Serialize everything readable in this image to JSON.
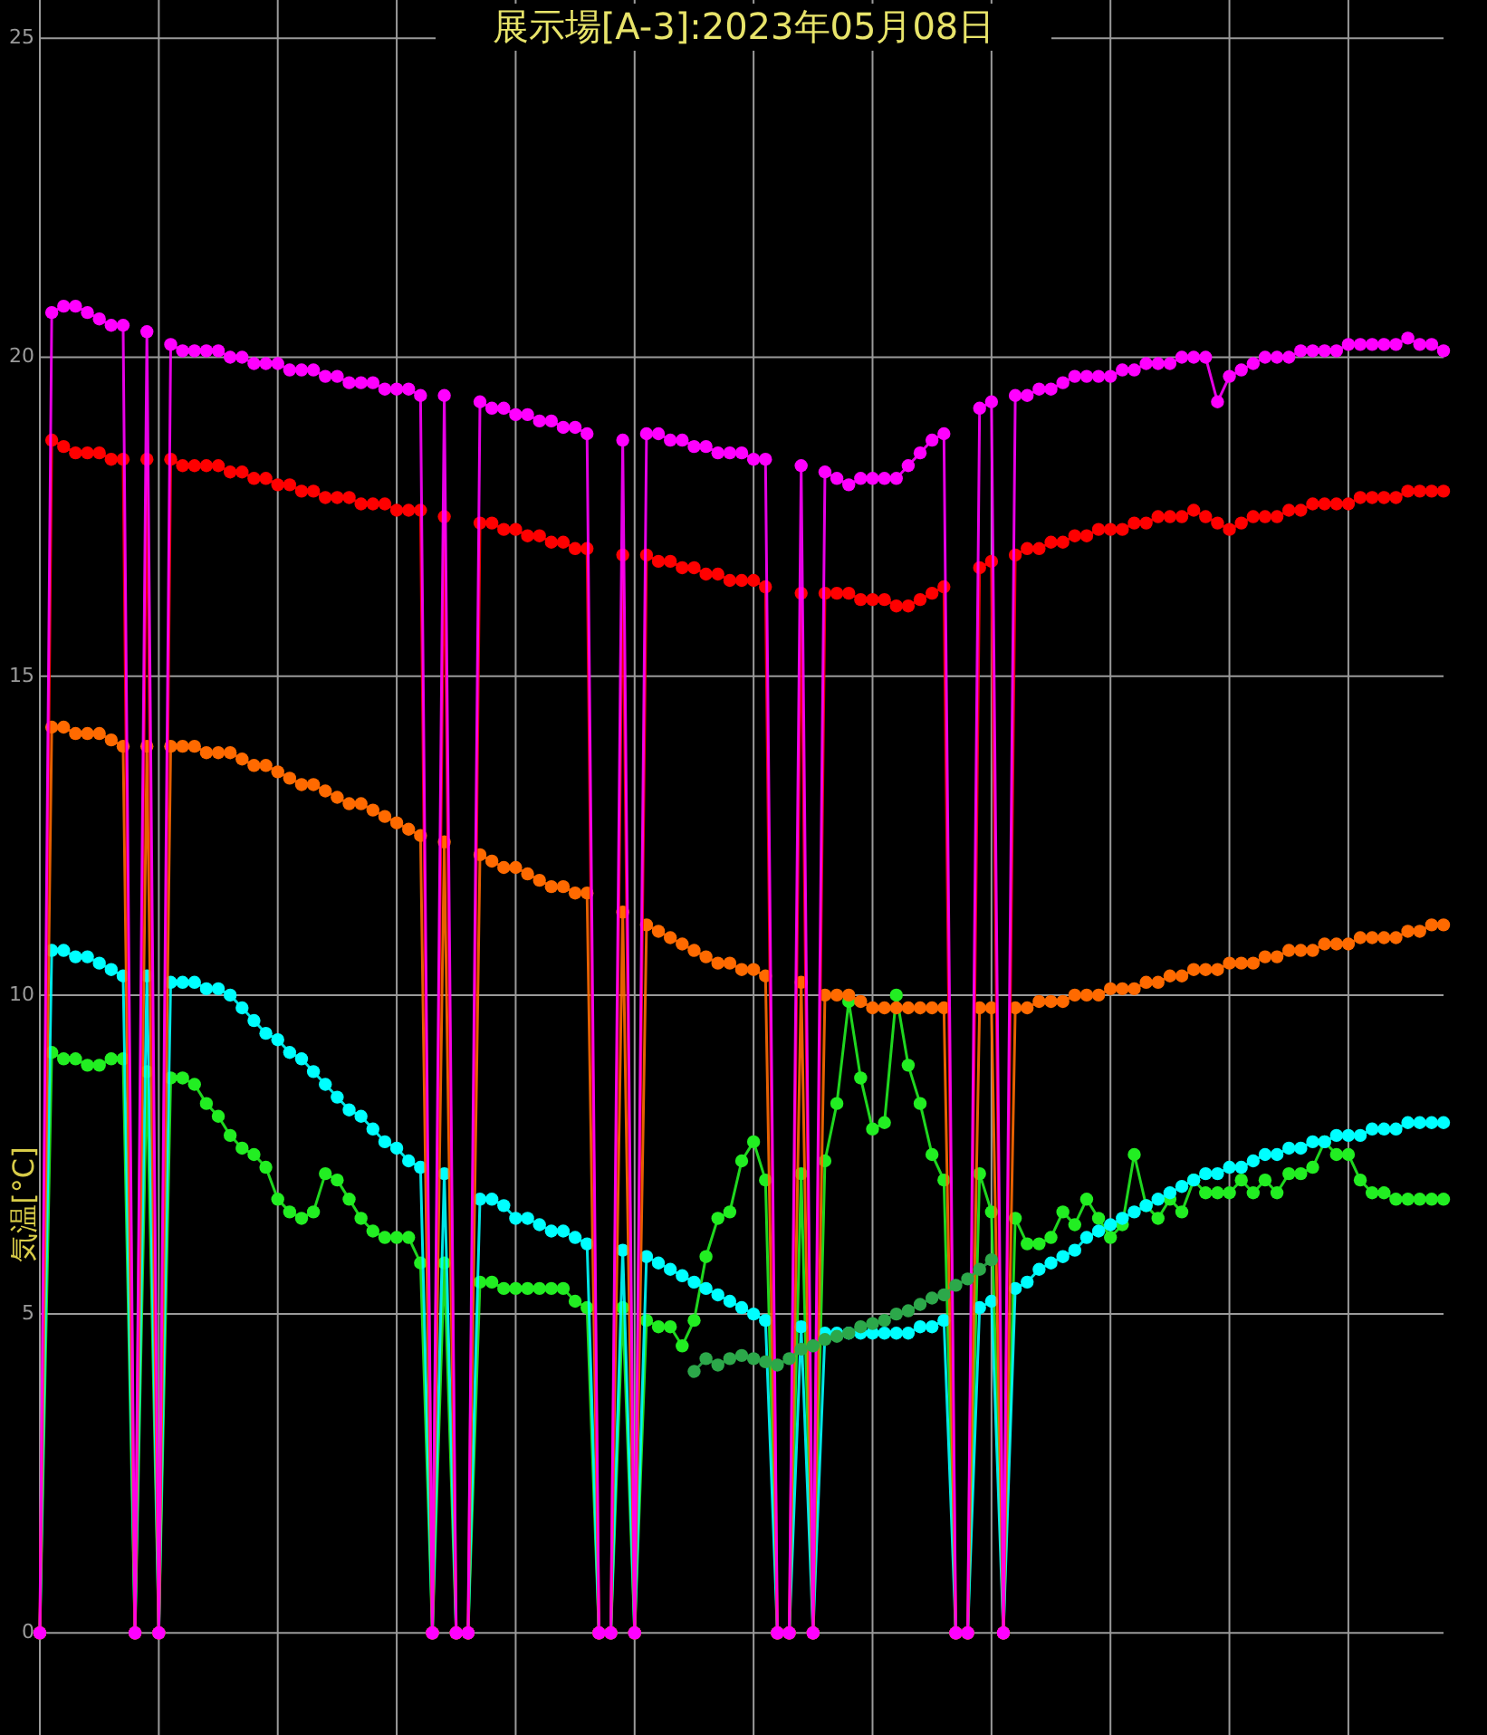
{
  "chart_data": {
    "type": "line",
    "title": "展示場[A-3]:2023年05月08日",
    "ylabel": "気温[°C]",
    "categories": [
      null,
      null,
      null,
      null,
      null,
      null,
      null,
      null,
      null,
      null,
      null,
      null,
      null,
      null,
      null,
      null,
      null,
      null,
      null,
      null,
      null,
      null,
      null,
      null,
      null,
      null,
      null,
      null,
      null,
      null,
      null,
      null,
      null,
      null,
      null,
      null,
      null,
      null,
      null,
      null,
      null,
      null,
      null,
      null,
      null,
      null,
      null,
      null,
      null,
      null,
      null,
      null,
      null,
      null,
      null,
      null,
      null,
      null,
      null,
      null,
      null,
      null,
      null,
      null,
      null,
      null,
      null,
      null,
      null,
      null,
      null,
      null,
      null,
      null,
      null,
      null,
      null,
      null,
      null,
      null,
      null,
      null,
      null,
      null,
      null,
      null,
      null,
      null,
      null,
      null,
      null,
      null,
      null,
      null,
      null,
      null,
      null,
      null,
      null,
      null,
      null,
      null,
      null,
      null,
      null,
      null,
      null,
      null,
      null,
      null,
      null,
      null,
      null,
      null,
      null,
      null,
      null,
      null,
      null
    ],
    "series": [
      {
        "color": "#2ca84a",
        "values": [
          null,
          null,
          null,
          null,
          null,
          null,
          null,
          null,
          null,
          null,
          null,
          null,
          null,
          null,
          null,
          null,
          null,
          null,
          null,
          null,
          null,
          null,
          null,
          null,
          null,
          null,
          null,
          null,
          null,
          null,
          null,
          null,
          null,
          null,
          null,
          null,
          null,
          null,
          null,
          null,
          null,
          null,
          null,
          null,
          null,
          null,
          null,
          null,
          null,
          null,
          null,
          null,
          null,
          null,
          null,
          4.1,
          4.3,
          4.2,
          4.3,
          4.35,
          4.3,
          4.25,
          4.2,
          4.3,
          4.45,
          4.5,
          4.6,
          4.65,
          4.7,
          4.8,
          4.85,
          4.9,
          5.0,
          5.05,
          5.15,
          5.25,
          5.3,
          5.45,
          5.55,
          5.7,
          5.85,
          null,
          null,
          null,
          null,
          null,
          null,
          null,
          null,
          null,
          null,
          null,
          null,
          null,
          null,
          null,
          null,
          null,
          null,
          null,
          null,
          null,
          null,
          null,
          null,
          null,
          null,
          null,
          null,
          null,
          null,
          null,
          null,
          null,
          null,
          null,
          null,
          null,
          null
        ]
      },
      {
        "color": "#ff00ff",
        "values": [
          0,
          20.7,
          20.8,
          20.8,
          20.7,
          20.6,
          20.5,
          20.5,
          0,
          20.4,
          0,
          20.2,
          20.1,
          20.1,
          20.1,
          20.1,
          20.0,
          20.0,
          19.9,
          19.9,
          19.9,
          19.8,
          19.8,
          19.8,
          19.7,
          19.7,
          19.6,
          19.6,
          19.6,
          19.5,
          19.5,
          19.5,
          19.4,
          0,
          19.4,
          0,
          0,
          19.3,
          19.2,
          19.2,
          19.1,
          19.1,
          19.0,
          19.0,
          18.9,
          18.9,
          18.8,
          0,
          0,
          18.7,
          0,
          18.8,
          18.8,
          18.7,
          18.7,
          18.6,
          18.6,
          18.5,
          18.5,
          18.5,
          18.4,
          18.4,
          0,
          0,
          18.3,
          0,
          18.2,
          18.1,
          18.0,
          18.1,
          18.1,
          18.1,
          18.1,
          18.3,
          18.5,
          18.7,
          18.8,
          0,
          0,
          19.2,
          19.3,
          0,
          19.4,
          19.4,
          19.5,
          19.5,
          19.6,
          19.7,
          19.7,
          19.7,
          19.7,
          19.8,
          19.8,
          19.9,
          19.9,
          19.9,
          20.0,
          20.0,
          20.0,
          19.3,
          19.7,
          19.8,
          19.9,
          20.0,
          20.0,
          20.0,
          20.1,
          20.1,
          20.1,
          20.1,
          20.2,
          20.2,
          20.2,
          20.2,
          20.2,
          20.3,
          20.2,
          20.2,
          20.1
        ]
      },
      {
        "color": "#ff0000",
        "values": [
          0,
          18.7,
          18.6,
          18.5,
          18.5,
          18.5,
          18.4,
          18.4,
          0,
          18.4,
          0,
          18.4,
          18.3,
          18.3,
          18.3,
          18.3,
          18.2,
          18.2,
          18.1,
          18.1,
          18.0,
          18.0,
          17.9,
          17.9,
          17.8,
          17.8,
          17.8,
          17.7,
          17.7,
          17.7,
          17.6,
          17.6,
          17.6,
          0,
          17.5,
          0,
          0,
          17.4,
          17.4,
          17.3,
          17.3,
          17.2,
          17.2,
          17.1,
          17.1,
          17.0,
          17.0,
          0,
          0,
          16.9,
          0,
          16.9,
          16.8,
          16.8,
          16.7,
          16.7,
          16.6,
          16.6,
          16.5,
          16.5,
          16.5,
          16.4,
          0,
          0,
          16.3,
          0,
          16.3,
          16.3,
          16.3,
          16.2,
          16.2,
          16.2,
          16.1,
          16.1,
          16.2,
          16.3,
          16.4,
          0,
          0,
          16.7,
          16.8,
          0,
          16.9,
          17.0,
          17.0,
          17.1,
          17.1,
          17.2,
          17.2,
          17.3,
          17.3,
          17.3,
          17.4,
          17.4,
          17.5,
          17.5,
          17.5,
          17.6,
          17.5,
          17.4,
          17.3,
          17.4,
          17.5,
          17.5,
          17.5,
          17.6,
          17.6,
          17.7,
          17.7,
          17.7,
          17.7,
          17.8,
          17.8,
          17.8,
          17.8,
          17.9,
          17.9,
          17.9,
          17.9
        ]
      },
      {
        "color": "#ff6a00",
        "values": [
          0,
          14.2,
          14.2,
          14.1,
          14.1,
          14.1,
          14.0,
          13.9,
          0,
          13.9,
          0,
          13.9,
          13.9,
          13.9,
          13.8,
          13.8,
          13.8,
          13.7,
          13.6,
          13.6,
          13.5,
          13.4,
          13.3,
          13.3,
          13.2,
          13.1,
          13.0,
          13.0,
          12.9,
          12.8,
          12.7,
          12.6,
          12.5,
          0,
          12.4,
          0,
          0,
          12.2,
          12.1,
          12.0,
          12.0,
          11.9,
          11.8,
          11.7,
          11.7,
          11.6,
          11.6,
          0,
          0,
          11.3,
          0,
          11.1,
          11.0,
          10.9,
          10.8,
          10.7,
          10.6,
          10.5,
          10.5,
          10.4,
          10.4,
          10.3,
          0,
          0,
          10.2,
          0,
          10.0,
          10.0,
          10.0,
          9.9,
          9.8,
          9.8,
          9.8,
          9.8,
          9.8,
          9.8,
          9.8,
          0,
          0,
          9.8,
          9.8,
          0,
          9.8,
          9.8,
          9.9,
          9.9,
          9.9,
          10.0,
          10.0,
          10.0,
          10.1,
          10.1,
          10.1,
          10.2,
          10.2,
          10.3,
          10.3,
          10.4,
          10.4,
          10.4,
          10.5,
          10.5,
          10.5,
          10.6,
          10.6,
          10.7,
          10.7,
          10.7,
          10.8,
          10.8,
          10.8,
          10.9,
          10.9,
          10.9,
          10.9,
          11.0,
          11.0,
          11.1,
          11.1
        ]
      },
      {
        "color": "#00ffff",
        "values": [
          0,
          10.7,
          10.7,
          10.6,
          10.6,
          10.5,
          10.4,
          10.3,
          0,
          10.3,
          0,
          10.2,
          10.2,
          10.2,
          10.1,
          10.1,
          10.0,
          9.8,
          9.6,
          9.4,
          9.3,
          9.1,
          9.0,
          8.8,
          8.6,
          8.4,
          8.2,
          8.1,
          7.9,
          7.7,
          7.6,
          7.4,
          7.3,
          0,
          7.2,
          0,
          0,
          6.8,
          6.8,
          6.7,
          6.5,
          6.5,
          6.4,
          6.3,
          6.3,
          6.2,
          6.1,
          0,
          0,
          6.0,
          0,
          5.9,
          5.8,
          5.7,
          5.6,
          5.5,
          5.4,
          5.3,
          5.2,
          5.1,
          5.0,
          4.9,
          0,
          0,
          4.8,
          0,
          4.7,
          4.7,
          4.7,
          4.7,
          4.7,
          4.7,
          4.7,
          4.7,
          4.8,
          4.8,
          4.9,
          0,
          0,
          5.1,
          5.2,
          0,
          5.4,
          5.5,
          5.7,
          5.8,
          5.9,
          6.0,
          6.2,
          6.3,
          6.4,
          6.5,
          6.6,
          6.7,
          6.8,
          6.9,
          7.0,
          7.1,
          7.2,
          7.2,
          7.3,
          7.3,
          7.4,
          7.5,
          7.5,
          7.6,
          7.6,
          7.7,
          7.7,
          7.8,
          7.8,
          7.8,
          7.9,
          7.9,
          7.9,
          8.0,
          8.0,
          8.0,
          8.0
        ]
      },
      {
        "color": "#22ee22",
        "values": [
          0,
          9.1,
          9.0,
          9.0,
          8.9,
          8.9,
          9.0,
          9.0,
          0,
          8.8,
          0,
          8.7,
          8.7,
          8.6,
          8.3,
          8.1,
          7.8,
          7.6,
          7.5,
          7.3,
          6.8,
          6.6,
          6.5,
          6.6,
          7.2,
          7.1,
          6.8,
          6.5,
          6.3,
          6.2,
          6.2,
          6.2,
          5.8,
          0,
          5.8,
          0,
          0,
          5.5,
          5.5,
          5.4,
          5.4,
          5.4,
          5.4,
          5.4,
          5.4,
          5.2,
          5.1,
          0,
          0,
          5.1,
          0,
          4.9,
          4.8,
          4.8,
          4.5,
          4.9,
          5.9,
          6.5,
          6.6,
          7.4,
          7.7,
          7.1,
          0,
          0,
          7.2,
          0,
          7.4,
          8.3,
          9.9,
          8.7,
          7.9,
          8.0,
          10.0,
          8.9,
          8.3,
          7.5,
          7.1,
          0,
          0,
          7.2,
          6.6,
          0,
          6.5,
          6.1,
          6.1,
          6.2,
          6.6,
          6.4,
          6.8,
          6.5,
          6.2,
          6.4,
          7.5,
          6.7,
          6.5,
          6.8,
          6.6,
          7.1,
          6.9,
          6.9,
          6.9,
          7.1,
          6.9,
          7.1,
          6.9,
          7.2,
          7.2,
          7.3,
          7.7,
          7.5,
          7.5,
          7.1,
          6.9,
          6.9,
          6.8,
          6.8,
          6.8,
          6.8,
          6.8
        ]
      }
    ],
    "ylim": [
      -1.6,
      25.6
    ],
    "yticks": [
      0,
      5,
      10,
      15,
      20,
      25
    ],
    "grid": true,
    "marker": "circle",
    "line_style": "solid"
  }
}
